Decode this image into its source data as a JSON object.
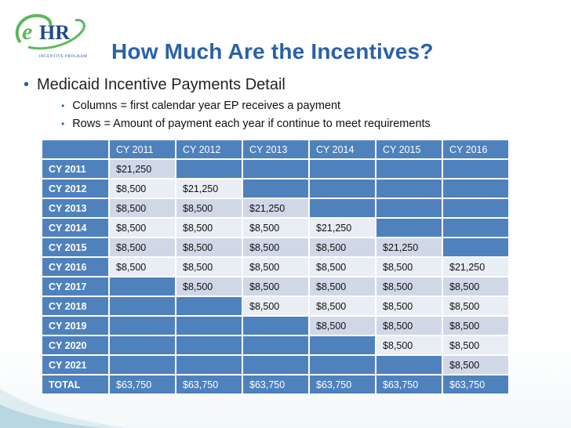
{
  "logo": {
    "text": "eHR",
    "subtitle": "INCENTIVE PROGRAM"
  },
  "title": "How Much Are the Incentives?",
  "bullet_main": "Medicaid Incentive Payments Detail",
  "sub_bullets": [
    "Columns = first calendar year EP receives a payment",
    "Rows = Amount of payment each year if continue to meet requirements"
  ],
  "table": {
    "header": [
      "",
      "CY 2011",
      "CY 2012",
      "CY 2013",
      "CY 2014",
      "CY 2015",
      "CY 2016"
    ],
    "rows": [
      [
        "CY 2011",
        "$21,250",
        "",
        "",
        "",
        "",
        ""
      ],
      [
        "CY 2012",
        "$8,500",
        "$21,250",
        "",
        "",
        "",
        ""
      ],
      [
        "CY 2013",
        "$8,500",
        "$8,500",
        "$21,250",
        "",
        "",
        ""
      ],
      [
        "CY 2014",
        "$8,500",
        "$8,500",
        "$8,500",
        "$21,250",
        "",
        ""
      ],
      [
        "CY 2015",
        "$8,500",
        "$8,500",
        "$8,500",
        "$8,500",
        "$21,250",
        ""
      ],
      [
        "CY 2016",
        "$8,500",
        "$8,500",
        "$8,500",
        "$8,500",
        "$8,500",
        "$21,250"
      ],
      [
        "CY 2017",
        "",
        "$8,500",
        "$8,500",
        "$8,500",
        "$8,500",
        "$8,500"
      ],
      [
        "CY 2018",
        "",
        "",
        "$8,500",
        "$8,500",
        "$8,500",
        "$8,500"
      ],
      [
        "CY 2019",
        "",
        "",
        "",
        "$8,500",
        "$8,500",
        "$8,500"
      ],
      [
        "CY 2020",
        "",
        "",
        "",
        "",
        "$8,500",
        "$8,500"
      ],
      [
        "CY 2021",
        "",
        "",
        "",
        "",
        "",
        "$8,500"
      ]
    ],
    "total": [
      "TOTAL",
      "$63,750",
      "$63,750",
      "$63,750",
      "$63,750",
      "$63,750",
      "$63,750"
    ]
  },
  "colors": {
    "title": "#2a61a8",
    "header_fill": "#4f81bd",
    "row_fill_dark": "#d0d8e8",
    "row_fill_light": "#e9edf4",
    "logo_green": "#5cb85c",
    "logo_blue": "#1f4a86"
  }
}
